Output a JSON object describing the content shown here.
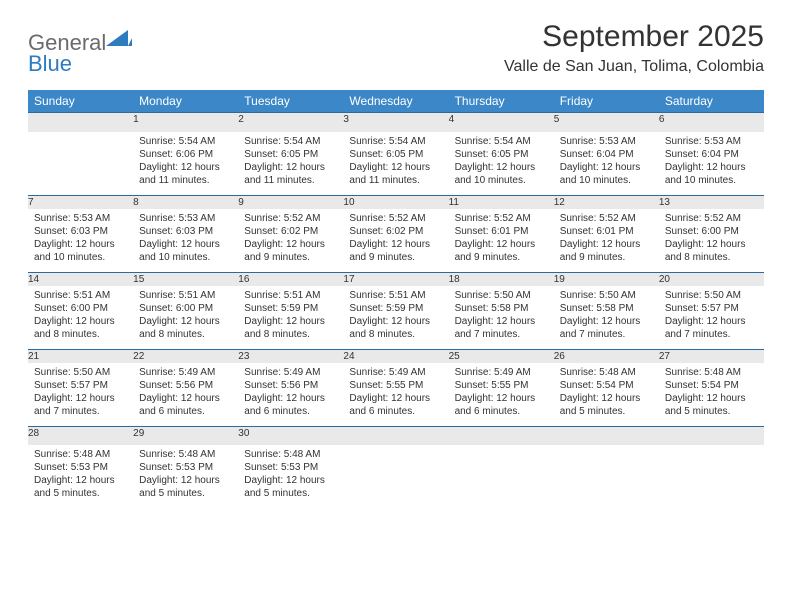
{
  "logo": {
    "textGray": "General",
    "textBlue": "Blue"
  },
  "title": {
    "month": "September 2025",
    "location": "Valle de San Juan, Tolima, Colombia"
  },
  "colors": {
    "headerBg": "#3c87c7",
    "headerText": "#ffffff",
    "dayNumBg": "#e9e9e9",
    "dayNumBorder": "#2b6aa1",
    "bodyText": "#333333",
    "logoGray": "#6b6b6b",
    "logoBlue": "#2e7cc0",
    "pageBg": "#ffffff"
  },
  "weekdays": [
    "Sunday",
    "Monday",
    "Tuesday",
    "Wednesday",
    "Thursday",
    "Friday",
    "Saturday"
  ],
  "weeks": [
    [
      null,
      {
        "n": "1",
        "sr": "5:54 AM",
        "ss": "6:06 PM",
        "dl": "12 hours and 11 minutes."
      },
      {
        "n": "2",
        "sr": "5:54 AM",
        "ss": "6:05 PM",
        "dl": "12 hours and 11 minutes."
      },
      {
        "n": "3",
        "sr": "5:54 AM",
        "ss": "6:05 PM",
        "dl": "12 hours and 11 minutes."
      },
      {
        "n": "4",
        "sr": "5:54 AM",
        "ss": "6:05 PM",
        "dl": "12 hours and 10 minutes."
      },
      {
        "n": "5",
        "sr": "5:53 AM",
        "ss": "6:04 PM",
        "dl": "12 hours and 10 minutes."
      },
      {
        "n": "6",
        "sr": "5:53 AM",
        "ss": "6:04 PM",
        "dl": "12 hours and 10 minutes."
      }
    ],
    [
      {
        "n": "7",
        "sr": "5:53 AM",
        "ss": "6:03 PM",
        "dl": "12 hours and 10 minutes."
      },
      {
        "n": "8",
        "sr": "5:53 AM",
        "ss": "6:03 PM",
        "dl": "12 hours and 10 minutes."
      },
      {
        "n": "9",
        "sr": "5:52 AM",
        "ss": "6:02 PM",
        "dl": "12 hours and 9 minutes."
      },
      {
        "n": "10",
        "sr": "5:52 AM",
        "ss": "6:02 PM",
        "dl": "12 hours and 9 minutes."
      },
      {
        "n": "11",
        "sr": "5:52 AM",
        "ss": "6:01 PM",
        "dl": "12 hours and 9 minutes."
      },
      {
        "n": "12",
        "sr": "5:52 AM",
        "ss": "6:01 PM",
        "dl": "12 hours and 9 minutes."
      },
      {
        "n": "13",
        "sr": "5:52 AM",
        "ss": "6:00 PM",
        "dl": "12 hours and 8 minutes."
      }
    ],
    [
      {
        "n": "14",
        "sr": "5:51 AM",
        "ss": "6:00 PM",
        "dl": "12 hours and 8 minutes."
      },
      {
        "n": "15",
        "sr": "5:51 AM",
        "ss": "6:00 PM",
        "dl": "12 hours and 8 minutes."
      },
      {
        "n": "16",
        "sr": "5:51 AM",
        "ss": "5:59 PM",
        "dl": "12 hours and 8 minutes."
      },
      {
        "n": "17",
        "sr": "5:51 AM",
        "ss": "5:59 PM",
        "dl": "12 hours and 8 minutes."
      },
      {
        "n": "18",
        "sr": "5:50 AM",
        "ss": "5:58 PM",
        "dl": "12 hours and 7 minutes."
      },
      {
        "n": "19",
        "sr": "5:50 AM",
        "ss": "5:58 PM",
        "dl": "12 hours and 7 minutes."
      },
      {
        "n": "20",
        "sr": "5:50 AM",
        "ss": "5:57 PM",
        "dl": "12 hours and 7 minutes."
      }
    ],
    [
      {
        "n": "21",
        "sr": "5:50 AM",
        "ss": "5:57 PM",
        "dl": "12 hours and 7 minutes."
      },
      {
        "n": "22",
        "sr": "5:49 AM",
        "ss": "5:56 PM",
        "dl": "12 hours and 6 minutes."
      },
      {
        "n": "23",
        "sr": "5:49 AM",
        "ss": "5:56 PM",
        "dl": "12 hours and 6 minutes."
      },
      {
        "n": "24",
        "sr": "5:49 AM",
        "ss": "5:55 PM",
        "dl": "12 hours and 6 minutes."
      },
      {
        "n": "25",
        "sr": "5:49 AM",
        "ss": "5:55 PM",
        "dl": "12 hours and 6 minutes."
      },
      {
        "n": "26",
        "sr": "5:48 AM",
        "ss": "5:54 PM",
        "dl": "12 hours and 5 minutes."
      },
      {
        "n": "27",
        "sr": "5:48 AM",
        "ss": "5:54 PM",
        "dl": "12 hours and 5 minutes."
      }
    ],
    [
      {
        "n": "28",
        "sr": "5:48 AM",
        "ss": "5:53 PM",
        "dl": "12 hours and 5 minutes."
      },
      {
        "n": "29",
        "sr": "5:48 AM",
        "ss": "5:53 PM",
        "dl": "12 hours and 5 minutes."
      },
      {
        "n": "30",
        "sr": "5:48 AM",
        "ss": "5:53 PM",
        "dl": "12 hours and 5 minutes."
      },
      null,
      null,
      null,
      null
    ]
  ],
  "labels": {
    "sunrise": "Sunrise:",
    "sunset": "Sunset:",
    "daylight": "Daylight:"
  }
}
